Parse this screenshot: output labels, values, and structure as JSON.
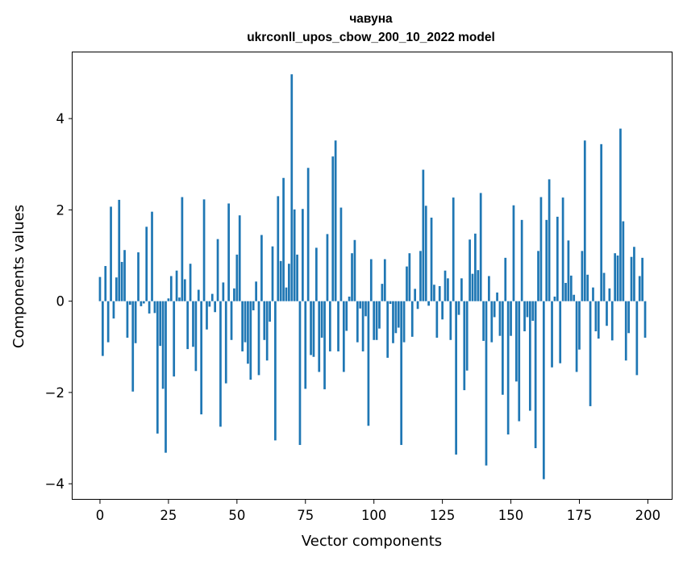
{
  "chart_data": {
    "type": "bar",
    "title": "чавуна",
    "subtitle": "ukrconll_upos_cbow_200_10_2022 model",
    "xlabel": "Vector components",
    "ylabel": "Components values",
    "xlim": [
      -10,
      209
    ],
    "ylim": [
      -4.35,
      5.45
    ],
    "xticks": [
      0,
      25,
      50,
      75,
      100,
      125,
      150,
      175,
      200
    ],
    "yticks": [
      -4,
      -2,
      0,
      2,
      4
    ],
    "ytick_labels": [
      "−4",
      "−2",
      "0",
      "2",
      "4"
    ],
    "grid": false,
    "bar_color": "#1f77b4",
    "bar_width": 0.8,
    "x": [
      0,
      1,
      2,
      3,
      4,
      5,
      6,
      7,
      8,
      9,
      10,
      11,
      12,
      13,
      14,
      15,
      16,
      17,
      18,
      19,
      20,
      21,
      22,
      23,
      24,
      25,
      26,
      27,
      28,
      29,
      30,
      31,
      32,
      33,
      34,
      35,
      36,
      37,
      38,
      39,
      40,
      41,
      42,
      43,
      44,
      45,
      46,
      47,
      48,
      49,
      50,
      51,
      52,
      53,
      54,
      55,
      56,
      57,
      58,
      59,
      60,
      61,
      62,
      63,
      64,
      65,
      66,
      67,
      68,
      69,
      70,
      71,
      72,
      73,
      74,
      75,
      76,
      77,
      78,
      79,
      80,
      81,
      82,
      83,
      84,
      85,
      86,
      87,
      88,
      89,
      90,
      91,
      92,
      93,
      94,
      95,
      96,
      97,
      98,
      99,
      100,
      101,
      102,
      103,
      104,
      105,
      106,
      107,
      108,
      109,
      110,
      111,
      112,
      113,
      114,
      115,
      116,
      117,
      118,
      119,
      120,
      121,
      122,
      123,
      124,
      125,
      126,
      127,
      128,
      129,
      130,
      131,
      132,
      133,
      134,
      135,
      136,
      137,
      138,
      139,
      140,
      141,
      142,
      143,
      144,
      145,
      146,
      147,
      148,
      149,
      150,
      151,
      152,
      153,
      154,
      155,
      156,
      157,
      158,
      159,
      160,
      161,
      162,
      163,
      164,
      165,
      166,
      167,
      168,
      169,
      170,
      171,
      172,
      173,
      174,
      175,
      176,
      177,
      178,
      179,
      180,
      181,
      182,
      183,
      184,
      185,
      186,
      187,
      188,
      189,
      190,
      191,
      192,
      193,
      194,
      195,
      196,
      197,
      198,
      199
    ],
    "values": [
      0.53,
      -1.2,
      0.77,
      -0.9,
      2.07,
      -0.38,
      0.52,
      2.22,
      0.86,
      1.12,
      -0.8,
      -0.08,
      -1.98,
      -0.92,
      1.07,
      -0.11,
      -0.05,
      1.63,
      -0.27,
      1.96,
      -0.26,
      -2.9,
      -0.98,
      -1.92,
      -3.32,
      0.06,
      0.55,
      -1.65,
      0.67,
      0.08,
      2.28,
      0.48,
      -1.05,
      0.82,
      -1.0,
      -1.53,
      0.25,
      -2.48,
      2.23,
      -0.62,
      -0.12,
      0.16,
      -0.24,
      1.36,
      -2.75,
      0.41,
      -1.8,
      2.14,
      -0.85,
      0.28,
      1.02,
      1.88,
      -1.1,
      -0.9,
      -1.37,
      -1.72,
      -0.2,
      0.43,
      -1.62,
      1.45,
      -0.85,
      -1.3,
      -0.45,
      1.2,
      -3.05,
      2.3,
      0.88,
      2.7,
      0.3,
      0.82,
      4.97,
      2.01,
      1.02,
      -3.15,
      2.02,
      -1.92,
      2.92,
      -1.18,
      -1.22,
      1.17,
      -1.55,
      -0.8,
      -1.93,
      1.47,
      -1.1,
      3.17,
      3.52,
      -1.1,
      2.05,
      -1.55,
      -0.65,
      0.1,
      1.05,
      1.34,
      -0.9,
      -0.16,
      -1.1,
      -0.33,
      -2.73,
      0.92,
      -0.85,
      -0.85,
      -0.6,
      0.38,
      0.92,
      -1.24,
      -0.06,
      -0.92,
      -0.7,
      -0.58,
      -3.15,
      -0.9,
      0.76,
      1.05,
      -0.78,
      0.27,
      -0.17,
      1.1,
      2.88,
      2.09,
      -0.1,
      1.83,
      0.36,
      -0.8,
      0.33,
      -0.4,
      0.67,
      0.5,
      -0.85,
      2.27,
      -3.36,
      -0.3,
      0.5,
      -1.95,
      -1.52,
      1.35,
      0.6,
      1.48,
      0.68,
      2.37,
      -0.87,
      -3.6,
      0.55,
      -0.9,
      -0.35,
      0.19,
      -0.76,
      -2.05,
      0.95,
      -2.92,
      -0.76,
      2.1,
      -1.76,
      -2.63,
      1.78,
      -0.66,
      -0.35,
      -2.4,
      -0.43,
      -3.22,
      1.1,
      2.28,
      -3.9,
      1.78,
      2.67,
      -1.45,
      0.1,
      1.85,
      -1.36,
      2.27,
      0.4,
      1.33,
      0.56,
      0.14,
      -1.55,
      -1.06,
      1.1,
      3.52,
      0.58,
      -2.3,
      0.3,
      -0.66,
      -0.82,
      3.44,
      0.62,
      -0.54,
      0.28,
      -0.86,
      1.05,
      1.0,
      3.78,
      1.75,
      -1.3,
      -0.7,
      0.97,
      1.19,
      -1.62,
      0.55,
      0.95,
      -0.8
    ]
  }
}
